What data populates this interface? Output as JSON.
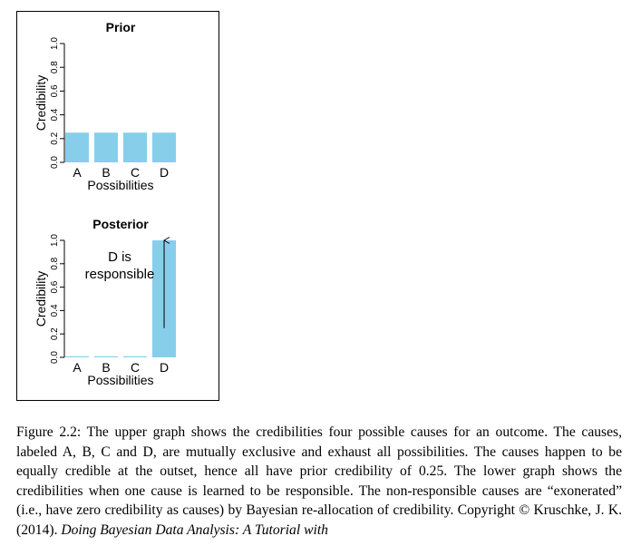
{
  "chart_data": [
    {
      "type": "bar",
      "title": "Prior",
      "categories": [
        "A",
        "B",
        "C",
        "D"
      ],
      "values": [
        0.25,
        0.25,
        0.25,
        0.25
      ],
      "xlabel": "Possibilities",
      "ylabel": "Credibility",
      "ylim": [
        0,
        1
      ],
      "yticks": [
        "0.0",
        "0.2",
        "0.4",
        "0.6",
        "0.8",
        "1.0"
      ],
      "bar_color": "#87ceeb",
      "grid": false
    },
    {
      "type": "bar",
      "title": "Posterior",
      "categories": [
        "A",
        "B",
        "C",
        "D"
      ],
      "values": [
        0,
        0,
        0,
        1
      ],
      "xlabel": "Possibilities",
      "ylabel": "Credibility",
      "ylim": [
        0,
        1
      ],
      "yticks": [
        "0.0",
        "0.2",
        "0.4",
        "0.6",
        "0.8",
        "1.0"
      ],
      "bar_color": "#87ceeb",
      "grid": false,
      "annotation": {
        "lines": [
          "D is",
          "responsible"
        ],
        "arrow_on": "D",
        "arrow_from": 0.25,
        "arrow_to": 1.0
      }
    }
  ],
  "caption": {
    "text_1": "Figure 2.2: The upper graph shows the credibilities four possible causes for an outcome. The causes, labeled A, B, C and D, are mutually exclusive and exhaust all possibilities. The causes happen to be equally credible at the outset, hence all have prior credibility of 0.25. The lower graph shows the credibilities when one cause is learned to be responsible. The non-responsible causes are “exonerated” (i.e., have zero credibility as causes) by Bayesian re-allocation of credibility.  Copyright © Kruschke, J. K. (2014). ",
    "italic": "Doing Bayesian Data Analysis: A Tutorial with"
  }
}
